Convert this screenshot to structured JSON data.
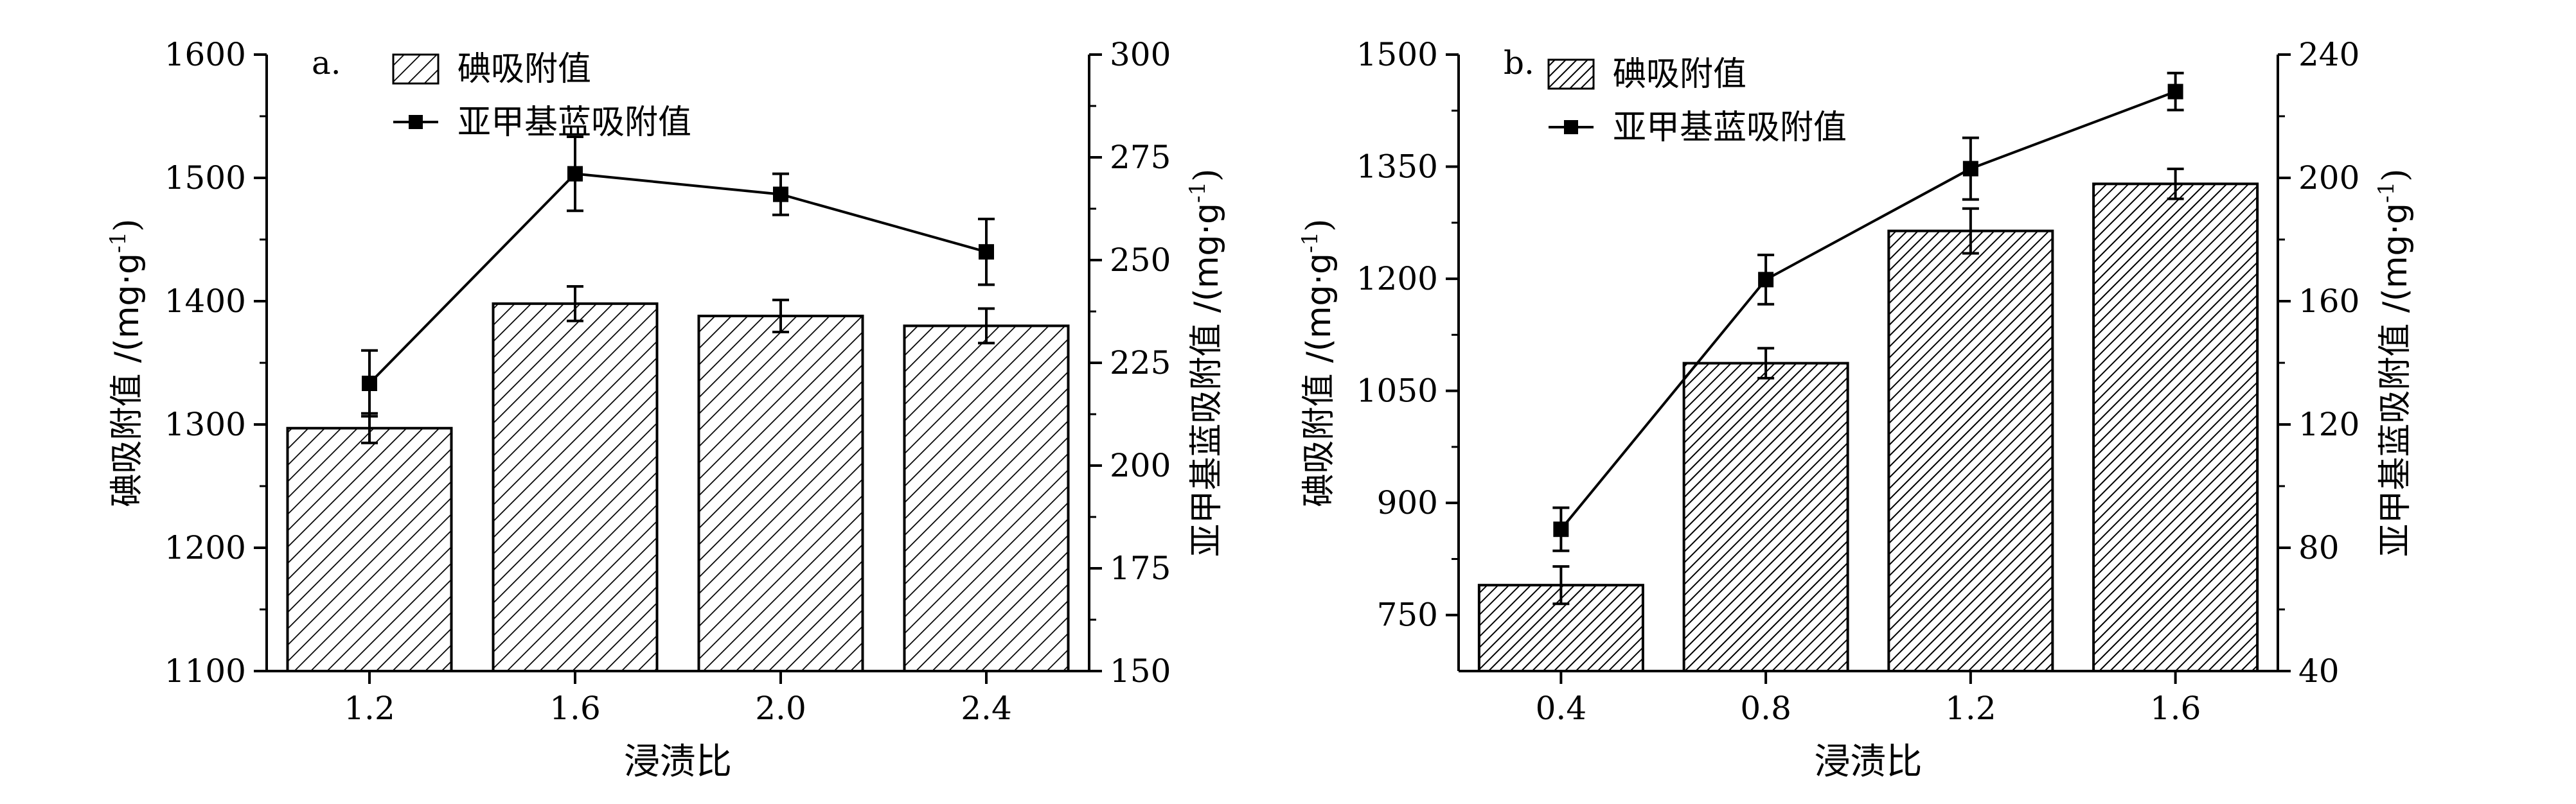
{
  "xlabel_shared": "浸渍比",
  "colors": {
    "axis": "#000000",
    "bar_fill": "#ffffff",
    "hatch": "#000000",
    "line": "#000000"
  },
  "chart_data": [
    {
      "type": "bar",
      "panel_label": "a.",
      "categories": [
        "1.2",
        "1.6",
        "2.0",
        "2.4"
      ],
      "xlabel": "浸渍比",
      "ylabel": "碘吸附值 /(mg·g",
      "ylabel_sup": "-1",
      "ylabel_tail": ")",
      "ylim": [
        1100,
        1600
      ],
      "yticks": [
        1100,
        1200,
        1300,
        1400,
        1500,
        1600
      ],
      "y2label": "亚甲基蓝吸附值 /(mg·g",
      "y2label_sup": "-1",
      "y2label_tail": ")",
      "y2lim": [
        150,
        300
      ],
      "y2ticks": [
        150,
        175,
        200,
        225,
        250,
        275,
        300
      ],
      "legend_position": "top-left",
      "series": [
        {
          "name": "碘吸附值",
          "kind": "bar",
          "axis": "left",
          "values": [
            1297,
            1398,
            1388,
            1380
          ],
          "errors": [
            12,
            14,
            13,
            14
          ]
        },
        {
          "name": "亚甲基蓝吸附值",
          "kind": "line",
          "axis": "right",
          "values": [
            220,
            271,
            266,
            252
          ],
          "errors": [
            8,
            9,
            5,
            8
          ]
        }
      ]
    },
    {
      "type": "bar",
      "panel_label": "b.",
      "categories": [
        "0.4",
        "0.8",
        "1.2",
        "1.6"
      ],
      "xlabel": "浸渍比",
      "ylabel": "碘吸附值 /(mg·g",
      "ylabel_sup": "-1",
      "ylabel_tail": ")",
      "ylim": [
        675,
        1500
      ],
      "yticks": [
        750,
        900,
        1050,
        1200,
        1350,
        1500
      ],
      "y2label": "亚甲基蓝吸附值 /(mg·g",
      "y2label_sup": "-1",
      "y2label_tail": ")",
      "y2lim": [
        40,
        240
      ],
      "y2ticks": [
        40,
        80,
        120,
        160,
        200,
        240
      ],
      "legend_position": "top-left",
      "series": [
        {
          "name": "碘吸附值",
          "kind": "bar",
          "axis": "left",
          "values": [
            790,
            1087,
            1264,
            1327
          ],
          "errors": [
            25,
            20,
            30,
            20
          ]
        },
        {
          "name": "亚甲基蓝吸附值",
          "kind": "line",
          "axis": "right",
          "values": [
            86,
            167,
            203,
            228
          ],
          "errors": [
            7,
            8,
            10,
            6
          ]
        }
      ]
    }
  ]
}
